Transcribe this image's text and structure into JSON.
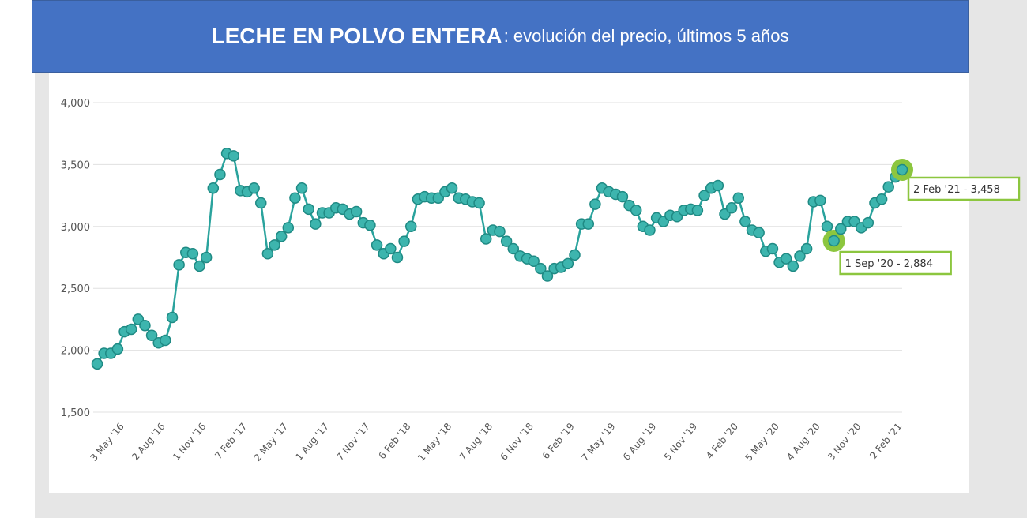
{
  "header": {
    "title_bold": "LECHE EN POLVO ENTERA",
    "title_rest": ": evolución del precio, últimos 5 años"
  },
  "chart_data": {
    "type": "line",
    "title": "LECHE EN POLVO ENTERA: evolución del precio, últimos 5 años",
    "xlabel": "",
    "ylabel": "",
    "ylim": [
      1500,
      4000
    ],
    "yticks": [
      1500,
      2000,
      2500,
      3000,
      3500,
      4000
    ],
    "ytick_labels": [
      "1,500",
      "2,000",
      "2,500",
      "3,000",
      "3,500",
      "4,000"
    ],
    "xtick_labels": [
      {
        "label": "3 May '16",
        "index": 4
      },
      {
        "label": "2 Aug '16",
        "index": 10
      },
      {
        "label": "1 Nov '16",
        "index": 16
      },
      {
        "label": "7 Feb '17",
        "index": 22
      },
      {
        "label": "2 May '17",
        "index": 28
      },
      {
        "label": "1 Aug '17",
        "index": 34
      },
      {
        "label": "7 Nov '17",
        "index": 40
      },
      {
        "label": "6 Feb '18",
        "index": 46
      },
      {
        "label": "1 May '18",
        "index": 52
      },
      {
        "label": "7 Aug '18",
        "index": 58
      },
      {
        "label": "6 Nov '18",
        "index": 64
      },
      {
        "label": "6 Feb '19",
        "index": 70
      },
      {
        "label": "7 May '19",
        "index": 76
      },
      {
        "label": "6 Aug '19",
        "index": 82
      },
      {
        "label": "5 Nov '19",
        "index": 88
      },
      {
        "label": "4 Feb '20",
        "index": 94
      },
      {
        "label": "5 May '20",
        "index": 100
      },
      {
        "label": "4 Aug '20",
        "index": 106
      },
      {
        "label": "3 Nov '20",
        "index": 112
      },
      {
        "label": "2 Feb '21",
        "index": 118
      }
    ],
    "grid": true,
    "legend": "none",
    "series": [
      {
        "color": "#2aa39d",
        "values": [
          1890,
          1975,
          1975,
          2010,
          2150,
          2170,
          2250,
          2200,
          2120,
          2060,
          2080,
          2265,
          2690,
          2790,
          2780,
          2680,
          2750,
          3310,
          3420,
          3590,
          3570,
          3290,
          3280,
          3310,
          3190,
          2780,
          2850,
          2920,
          2990,
          3230,
          3310,
          3140,
          3020,
          3110,
          3110,
          3150,
          3140,
          3100,
          3120,
          3030,
          3010,
          2850,
          2780,
          2820,
          2750,
          2880,
          3000,
          3220,
          3240,
          3230,
          3230,
          3280,
          3310,
          3230,
          3220,
          3200,
          3190,
          2900,
          2970,
          2960,
          2880,
          2820,
          2760,
          2740,
          2720,
          2660,
          2600,
          2660,
          2670,
          2700,
          2770,
          3020,
          3020,
          3180,
          3310,
          3280,
          3260,
          3240,
          3170,
          3130,
          3000,
          2970,
          3070,
          3040,
          3090,
          3080,
          3130,
          3140,
          3130,
          3250,
          3310,
          3330,
          3100,
          3150,
          3230,
          3040,
          2970,
          2950,
          2800,
          2820,
          2710,
          2740,
          2680,
          2760,
          2820,
          3200,
          3210,
          3000,
          2884,
          2980,
          3040,
          3040,
          2990,
          3030,
          3190,
          3220,
          3320,
          3400,
          3458
        ]
      }
    ],
    "annotations": [
      {
        "label": "1 Sep '20 - 2,884",
        "index": 108,
        "value": 2884
      },
      {
        "label": "2 Feb '21 - 3,458",
        "index": 118,
        "value": 3458
      }
    ],
    "highlight_color": "#8cc63f"
  }
}
